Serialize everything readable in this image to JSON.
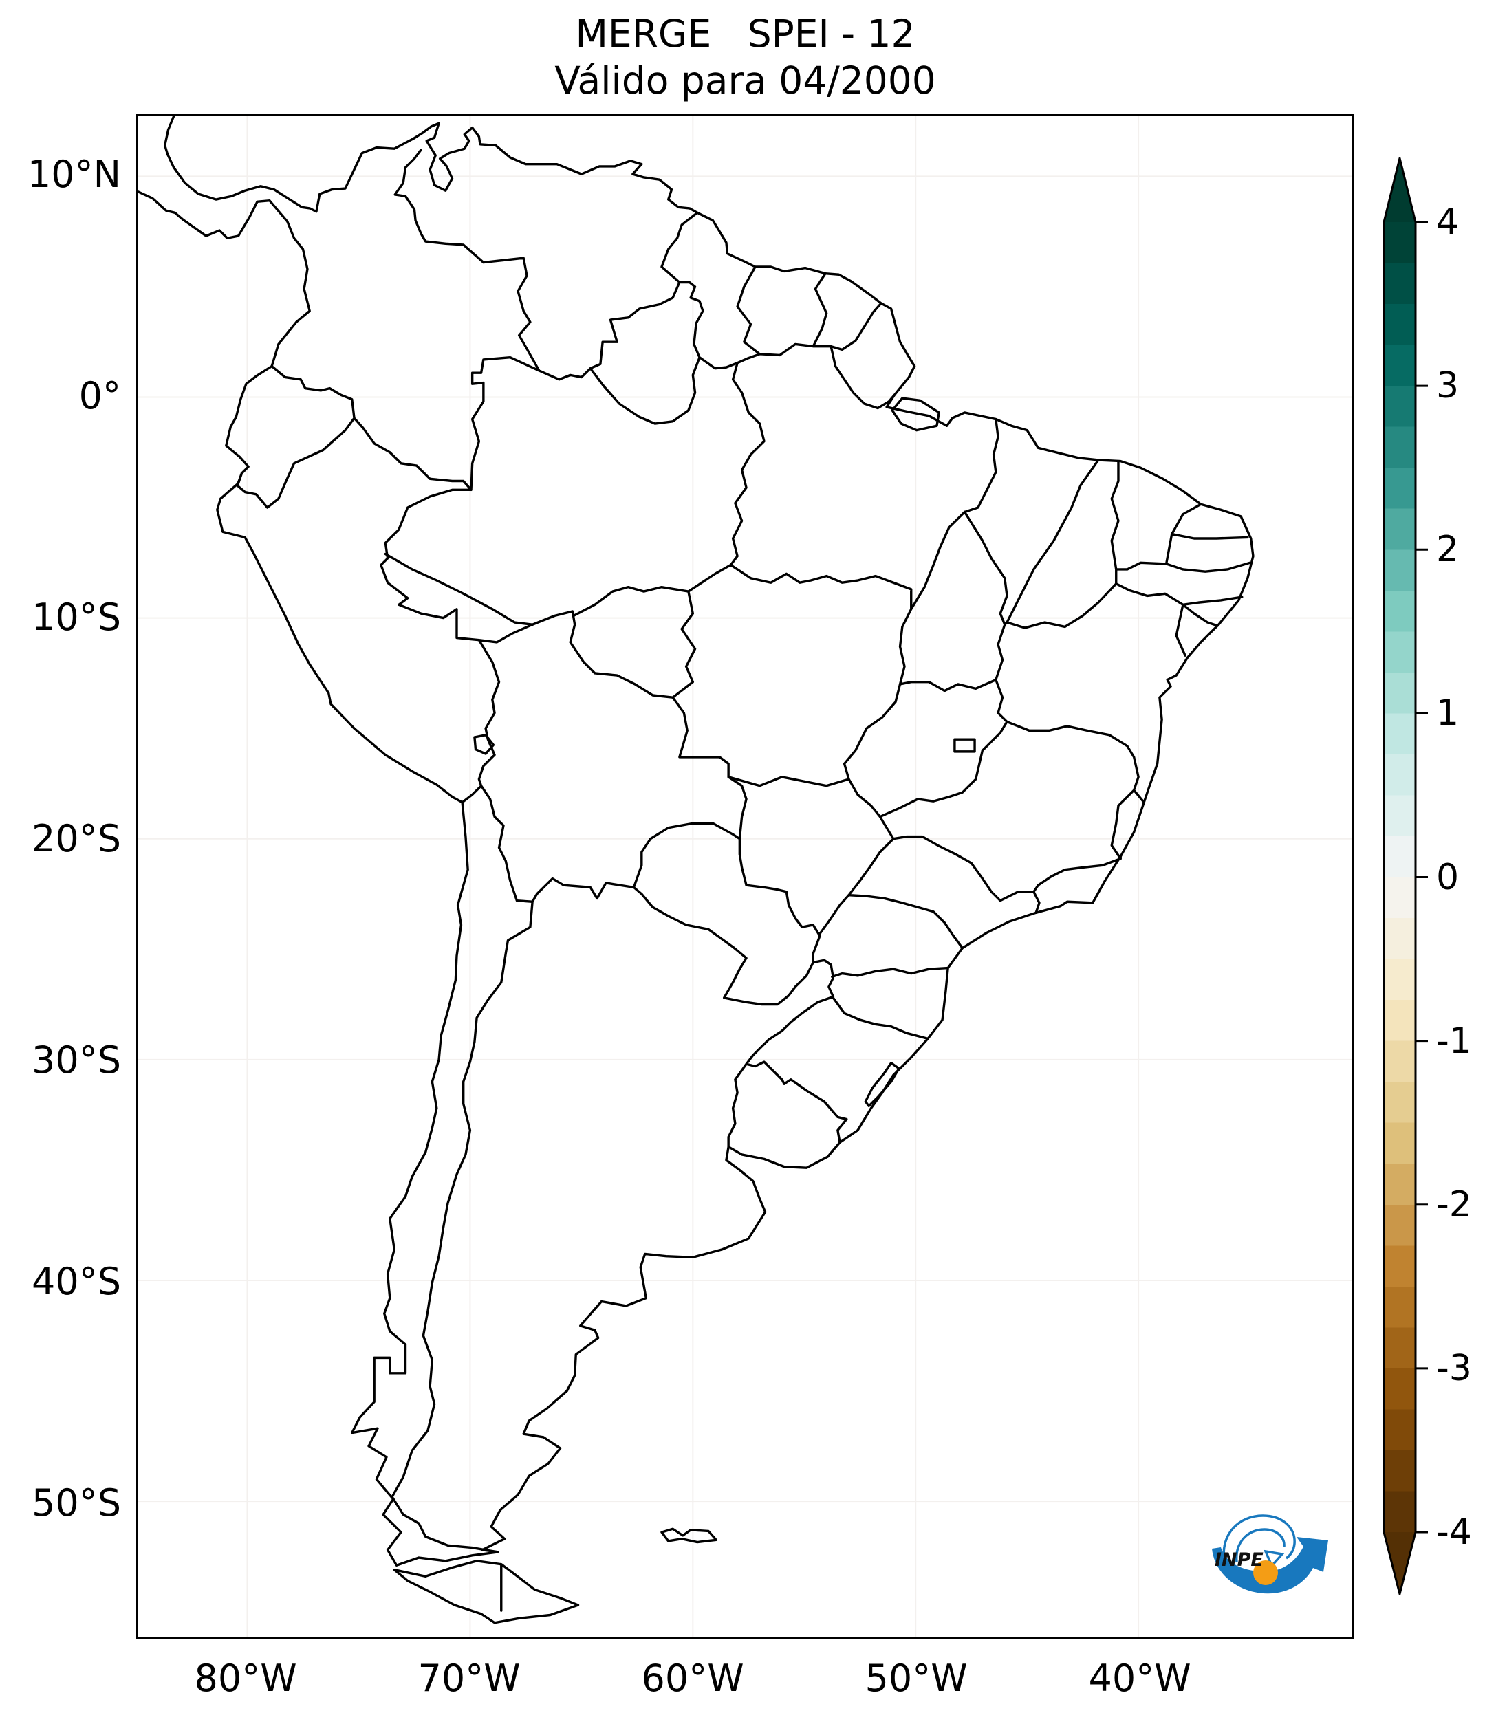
{
  "title": {
    "line1": "MERGE   SPEI - 12",
    "line2": "Válido para 04/2000"
  },
  "map": {
    "lat_ticks": [
      {
        "label": "10°N",
        "deg": 10
      },
      {
        "label": "0°",
        "deg": 0
      },
      {
        "label": "10°S",
        "deg": -10
      },
      {
        "label": "20°S",
        "deg": -20
      },
      {
        "label": "30°S",
        "deg": -30
      },
      {
        "label": "40°S",
        "deg": -40
      },
      {
        "label": "50°S",
        "deg": -50
      }
    ],
    "lon_ticks": [
      {
        "label": "80°W",
        "deg": -80
      },
      {
        "label": "70°W",
        "deg": -70
      },
      {
        "label": "60°W",
        "deg": -60
      },
      {
        "label": "50°W",
        "deg": -50
      },
      {
        "label": "40°W",
        "deg": -40
      }
    ]
  },
  "colorbar": {
    "ticks": [
      {
        "label": "4",
        "value": 4
      },
      {
        "label": "3",
        "value": 3
      },
      {
        "label": "2",
        "value": 2
      },
      {
        "label": "1",
        "value": 1
      },
      {
        "label": "0",
        "value": 0
      },
      {
        "label": "-1",
        "value": -1
      },
      {
        "label": "-2",
        "value": -2
      },
      {
        "label": "-3",
        "value": -3
      },
      {
        "label": "-4",
        "value": -4
      }
    ],
    "vmin": -4,
    "vmax": 4,
    "band_step": 0.25,
    "colormap_name": "BrBG",
    "colormap_anchors": [
      "#543005",
      "#8c510a",
      "#bf812d",
      "#dfc27d",
      "#f6e8c3",
      "#f5f5f5",
      "#c7eae5",
      "#80cdc1",
      "#35978f",
      "#01665e",
      "#003c30"
    ]
  },
  "logo": {
    "text": "INPE",
    "blue": "#1878be",
    "orange": "#f49d15"
  }
}
